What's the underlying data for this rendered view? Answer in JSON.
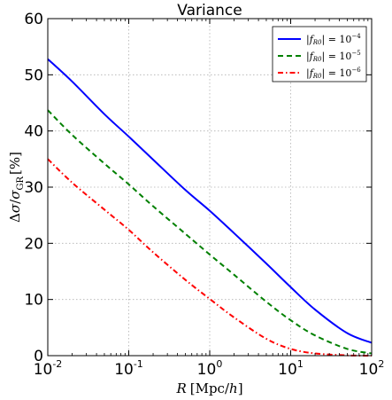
{
  "chart_data": {
    "type": "line",
    "title": "Variance",
    "xlabel": "R [Mpc/h]",
    "ylabel": "Δσ/σGR [%]",
    "xscale": "log",
    "xlim": [
      0.01,
      100
    ],
    "ylim": [
      0,
      60
    ],
    "grid": true,
    "legend_position": "top-right",
    "xticks": [
      {
        "base": "10",
        "exp": "-2",
        "value": 0.01
      },
      {
        "base": "10",
        "exp": "-1",
        "value": 0.1
      },
      {
        "base": "10",
        "exp": "0",
        "value": 1
      },
      {
        "base": "10",
        "exp": "1",
        "value": 10
      },
      {
        "base": "10",
        "exp": "2",
        "value": 100
      }
    ],
    "yticks": [
      "0",
      "10",
      "20",
      "30",
      "40",
      "50",
      "60"
    ],
    "series": [
      {
        "name": "|fR0| = 10^-4",
        "label_main": "|f",
        "label_sub": "R0",
        "label_tail": "| = 10",
        "label_exp": "−4",
        "color": "#0000ff",
        "style": "solid",
        "x": [
          0.01,
          0.02,
          0.05,
          0.1,
          0.2,
          0.5,
          1,
          2,
          5,
          10,
          20,
          50,
          100
        ],
        "y": [
          52.8,
          48.8,
          43.0,
          39.0,
          34.9,
          29.5,
          25.8,
          21.8,
          16.4,
          12.2,
          8.2,
          4.0,
          2.3
        ]
      },
      {
        "name": "|fR0| = 10^-5",
        "label_main": "|f",
        "label_sub": "R0",
        "label_tail": "| = 10",
        "label_exp": "−5",
        "color": "#008000",
        "style": "dashed",
        "x": [
          0.01,
          0.02,
          0.05,
          0.1,
          0.2,
          0.5,
          1,
          2,
          5,
          10,
          20,
          50,
          100
        ],
        "y": [
          43.7,
          39.3,
          34.2,
          30.5,
          26.6,
          21.7,
          18.0,
          14.4,
          9.6,
          6.3,
          3.6,
          1.2,
          0.4
        ]
      },
      {
        "name": "|fR0| = 10^-6",
        "label_main": "|f",
        "label_sub": "R0",
        "label_tail": "| = 10",
        "label_exp": "−6",
        "color": "#ff0000",
        "style": "dashdot",
        "x": [
          0.01,
          0.02,
          0.05,
          0.1,
          0.2,
          0.5,
          1,
          2,
          5,
          10,
          20,
          50,
          100
        ],
        "y": [
          35.0,
          30.8,
          26.0,
          22.4,
          18.4,
          13.5,
          10.1,
          6.8,
          3.0,
          1.2,
          0.4,
          0.05,
          0.0
        ]
      }
    ]
  }
}
